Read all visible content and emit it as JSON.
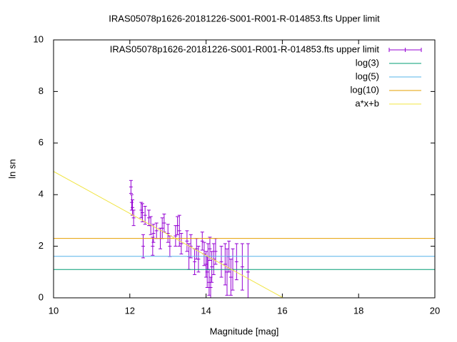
{
  "chart_data": {
    "type": "scatter",
    "title": "IRAS05078p1626-20181226-S001-R001-R-014853.fts Upper limit",
    "xlabel": "Magnitude [mag]",
    "ylabel": "ln sn",
    "xlim": [
      10,
      20
    ],
    "ylim": [
      0,
      10
    ],
    "xticks": [
      10,
      12,
      14,
      16,
      18,
      20
    ],
    "yticks": [
      0,
      2,
      4,
      6,
      8,
      10
    ],
    "legend": "top-right",
    "series": [
      {
        "name": "IRAS05078p1626-20181226-S001-R001-R-014853.fts upper limit",
        "style": "errorbars",
        "color": "#9400d3",
        "x": [
          12.03,
          12.05,
          12.07,
          12.1,
          12.3,
          12.33,
          12.35,
          12.4,
          12.5,
          12.55,
          12.6,
          12.62,
          12.7,
          12.8,
          12.85,
          12.9,
          13.0,
          13.05,
          13.2,
          13.25,
          13.3,
          13.35,
          13.5,
          13.55,
          13.6,
          13.7,
          13.75,
          13.8,
          13.9,
          13.95,
          14.0,
          14.03,
          14.05,
          14.08,
          14.1,
          14.12,
          14.15,
          14.2,
          14.25,
          14.4,
          14.5,
          14.55,
          14.6,
          14.65,
          14.7,
          14.8,
          14.95,
          15.1
        ],
        "values": [
          4.3,
          3.7,
          3.5,
          3.1,
          3.4,
          3.3,
          2.0,
          3.2,
          3.1,
          2.8,
          2.0,
          2.5,
          2.6,
          2.3,
          2.7,
          2.9,
          2.5,
          2.0,
          2.4,
          2.8,
          2.6,
          2.1,
          2.2,
          1.6,
          2.0,
          1.4,
          1.9,
          1.5,
          2.2,
          1.7,
          1.3,
          1.0,
          1.6,
          0.6,
          1.9,
          0.4,
          1.2,
          1.5,
          1.8,
          1.4,
          1.3,
          1.0,
          1.6,
          0.8,
          1.1,
          1.4,
          1.2,
          1.0
        ],
        "errors": [
          0.25,
          0.3,
          0.3,
          0.3,
          0.3,
          0.35,
          0.45,
          0.35,
          0.3,
          0.35,
          0.35,
          0.35,
          0.3,
          0.4,
          0.4,
          0.35,
          0.35,
          0.4,
          0.4,
          0.35,
          0.6,
          0.4,
          0.4,
          0.5,
          0.45,
          0.5,
          0.4,
          0.5,
          0.35,
          0.45,
          0.5,
          0.6,
          0.5,
          0.5,
          0.45,
          0.4,
          0.6,
          0.6,
          0.5,
          0.6,
          0.8,
          0.9,
          0.6,
          0.7,
          0.8,
          0.7,
          0.9,
          1.1
        ]
      },
      {
        "name": "log(3)",
        "style": "line",
        "color": "#009e73",
        "x": [
          10,
          20
        ],
        "values": [
          1.0986,
          1.0986
        ]
      },
      {
        "name": "log(5)",
        "style": "line",
        "color": "#56b4e9",
        "x": [
          10,
          20
        ],
        "values": [
          1.6094,
          1.6094
        ]
      },
      {
        "name": "log(10)",
        "style": "line",
        "color": "#e69f00",
        "x": [
          10,
          20
        ],
        "values": [
          2.3026,
          2.3026
        ]
      },
      {
        "name": "a*x+b",
        "style": "line",
        "color": "#f0e442",
        "x": [
          10,
          16.02
        ],
        "values": [
          4.9,
          0
        ]
      }
    ]
  }
}
